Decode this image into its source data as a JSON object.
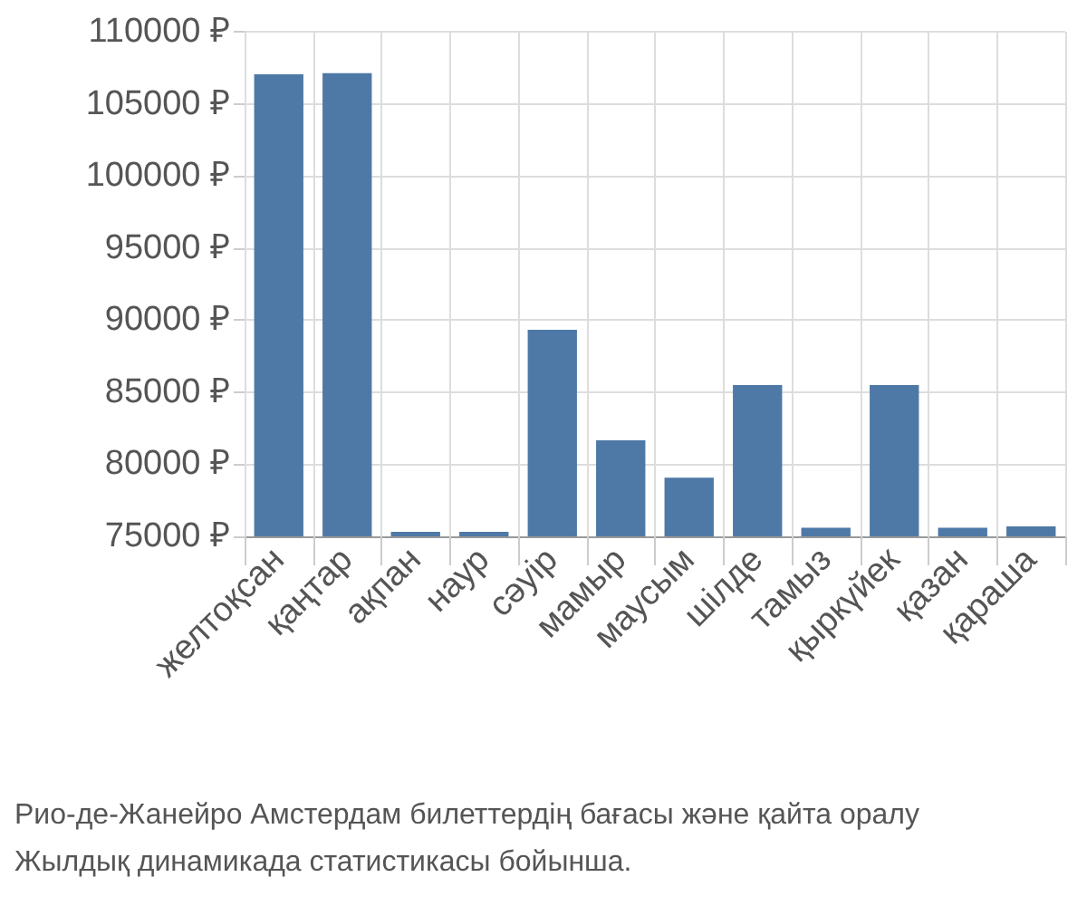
{
  "chart_data": {
    "type": "bar",
    "categories": [
      "желтоқсан",
      "қаңтар",
      "ақпан",
      "наур",
      "сәуір",
      "мамыр",
      "маусым",
      "шілде",
      "тамыз",
      "қыркүйек",
      "қазан",
      "қараша"
    ],
    "values": [
      107040,
      107130,
      75320,
      75320,
      89330,
      81660,
      79070,
      85500,
      75600,
      85500,
      75600,
      75690
    ],
    "color": "#4e79a7",
    "ylim": [
      75000,
      110000
    ],
    "yticks": [
      {
        "value": 75000,
        "label": "75000 ₽"
      },
      {
        "value": 80000,
        "label": "80000 ₽"
      },
      {
        "value": 85000,
        "label": "85000 ₽"
      },
      {
        "value": 90000,
        "label": "90000 ₽"
      },
      {
        "value": 95000,
        "label": "95000 ₽"
      },
      {
        "value": 100000,
        "label": "100000 ₽"
      },
      {
        "value": 105000,
        "label": "105000 ₽"
      },
      {
        "value": 110000,
        "label": "110000 ₽"
      }
    ],
    "grid": true,
    "annotations": [
      "Рио-де-Жанейро Амстердам билеттердің бағасы және қайта оралу",
      "Жылдық динамикада статистикасы бойынша."
    ]
  }
}
